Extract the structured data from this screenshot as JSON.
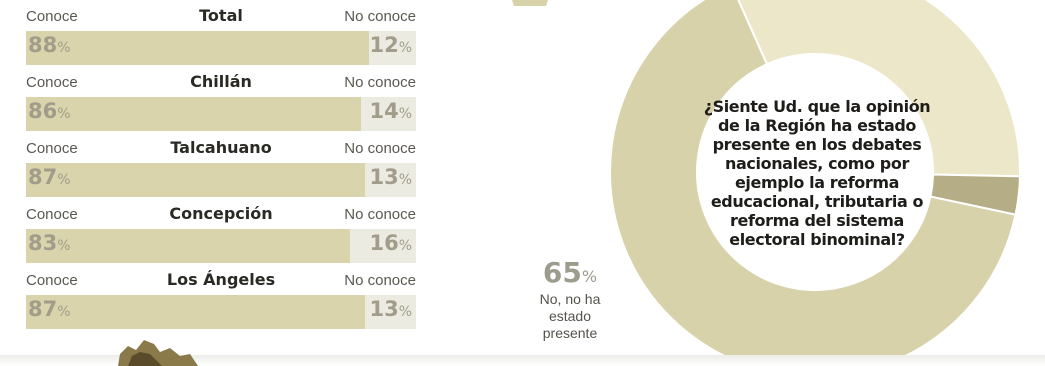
{
  "bar_section": {
    "left_header": "Conoce",
    "right_header": "No conoce",
    "percent_sign": "%",
    "rows": [
      {
        "region": "Total",
        "conoce": "88",
        "no_conoce": "12"
      },
      {
        "region": "Chillán",
        "conoce": "86",
        "no_conoce": "14"
      },
      {
        "region": "Talcahuano",
        "conoce": "87",
        "no_conoce": "13"
      },
      {
        "region": "Concepción",
        "conoce": "83",
        "no_conoce": "16"
      },
      {
        "region": "Los Ángeles",
        "conoce": "87",
        "no_conoce": "13"
      }
    ]
  },
  "donut": {
    "question": "¿Siente Ud. que la opinión de la Región ha estado presente en los debates nacionales, como por ejemplo la reforma educacional, tributaria o reforma del sistema electoral binominal?",
    "no_value": "65",
    "percent_sign": "%",
    "no_label": "No, no ha\nestado\npresente"
  },
  "colors": {
    "track": "#ecebe1",
    "fill": "#d9d4ac",
    "donut_main": "#d8d2aa",
    "donut_light": "#ece7c9",
    "donut_dark": "#b4ad85",
    "accent_number": "#a19d8a"
  },
  "chart_data": [
    {
      "type": "bar",
      "categories": [
        "Total",
        "Chillán",
        "Talcahuano",
        "Concepción",
        "Los Ángeles"
      ],
      "series": [
        {
          "name": "Conoce",
          "values": [
            88,
            86,
            87,
            83,
            87
          ]
        },
        {
          "name": "No conoce",
          "values": [
            12,
            14,
            13,
            16,
            13
          ]
        }
      ],
      "ylim": [
        0,
        100
      ]
    },
    {
      "type": "pie",
      "title": "¿Siente Ud. que la opinión de la Región ha estado presente en los debates nacionales, como por ejemplo la reforma educacional, tributaria o reforma del sistema electoral binominal?",
      "slices": [
        {
          "label": "No, no ha estado presente",
          "value": 65
        },
        {
          "label": "",
          "value": 32
        },
        {
          "label": "",
          "value": 3
        }
      ]
    }
  ]
}
